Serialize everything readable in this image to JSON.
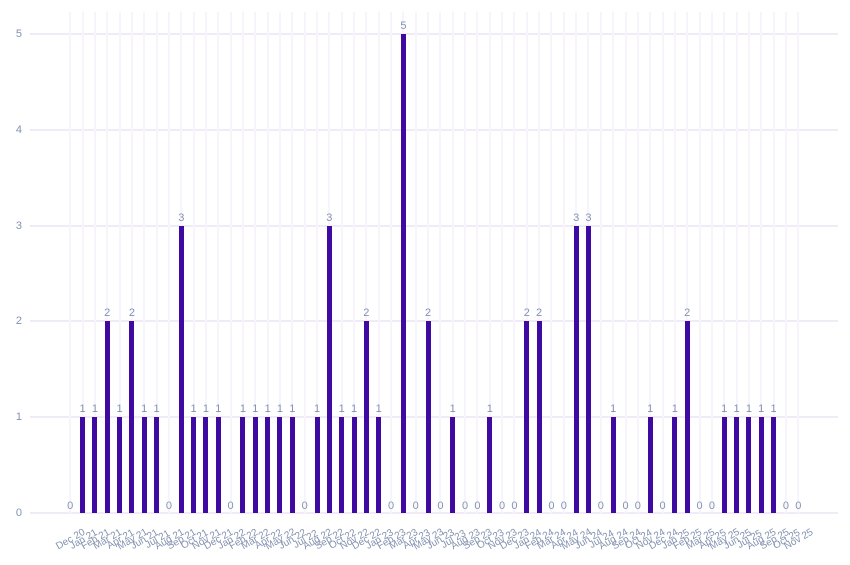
{
  "chart_data": {
    "type": "bar",
    "title": "",
    "xlabel": "",
    "ylabel": "",
    "legend_position": "none",
    "grid": true,
    "tick_angle": -30,
    "ylim": [
      0,
      5.25
    ],
    "yticks": [
      0,
      1,
      2,
      3,
      4,
      5
    ],
    "categories": [
      "Dec 20",
      "Jan 21",
      "Feb 21",
      "Mar 21",
      "Apr 21",
      "May 21",
      "Jun 21",
      "Jul 21",
      "Aug 21",
      "Sep 21",
      "Oct 21",
      "Nov 21",
      "Dec 21",
      "Jan 22",
      "Feb 22",
      "Mar 22",
      "Apr 22",
      "May 22",
      "Jun 22",
      "Jul 22",
      "Aug 22",
      "Sep 22",
      "Oct 22",
      "Nov 22",
      "Dec 22",
      "Jan 23",
      "Feb 23",
      "Mar 23",
      "Apr 23",
      "May 23",
      "Jun 23",
      "Jul 23",
      "Aug 23",
      "Sep 23",
      "Oct 23",
      "Nov 23",
      "Dec 23",
      "Jan 24",
      "Feb 24",
      "Mar 24",
      "Apr 24",
      "May 24",
      "Jun 24",
      "Jul 24",
      "Aug 24",
      "Sep 24",
      "Oct 24",
      "Nov 24",
      "Dec 24",
      "Jan 25",
      "Feb 25",
      "Mar 25",
      "Apr 25",
      "May 25",
      "Jun 25",
      "Jul 25",
      "Aug 25",
      "Sep 25",
      "Oct 25",
      "Nov 25"
    ],
    "values": [
      0,
      1,
      1,
      2,
      1,
      2,
      1,
      1,
      0,
      3,
      1,
      1,
      1,
      0,
      1,
      1,
      1,
      1,
      1,
      0,
      1,
      3,
      1,
      1,
      2,
      1,
      0,
      5,
      0,
      2,
      0,
      1,
      0,
      0,
      1,
      0,
      0,
      2,
      2,
      0,
      0,
      3,
      3,
      0,
      1,
      0,
      0,
      1,
      0,
      1,
      2,
      0,
      0,
      1,
      1,
      1,
      1,
      1,
      0,
      0
    ],
    "value_labels_shown": true,
    "colors": {
      "bar": "#3f0aa2",
      "tick_label": "#8492b0",
      "grid_horizontal": "#efecf7",
      "grid_vertical": "#f8f4fb",
      "background": "#ffffff"
    }
  }
}
